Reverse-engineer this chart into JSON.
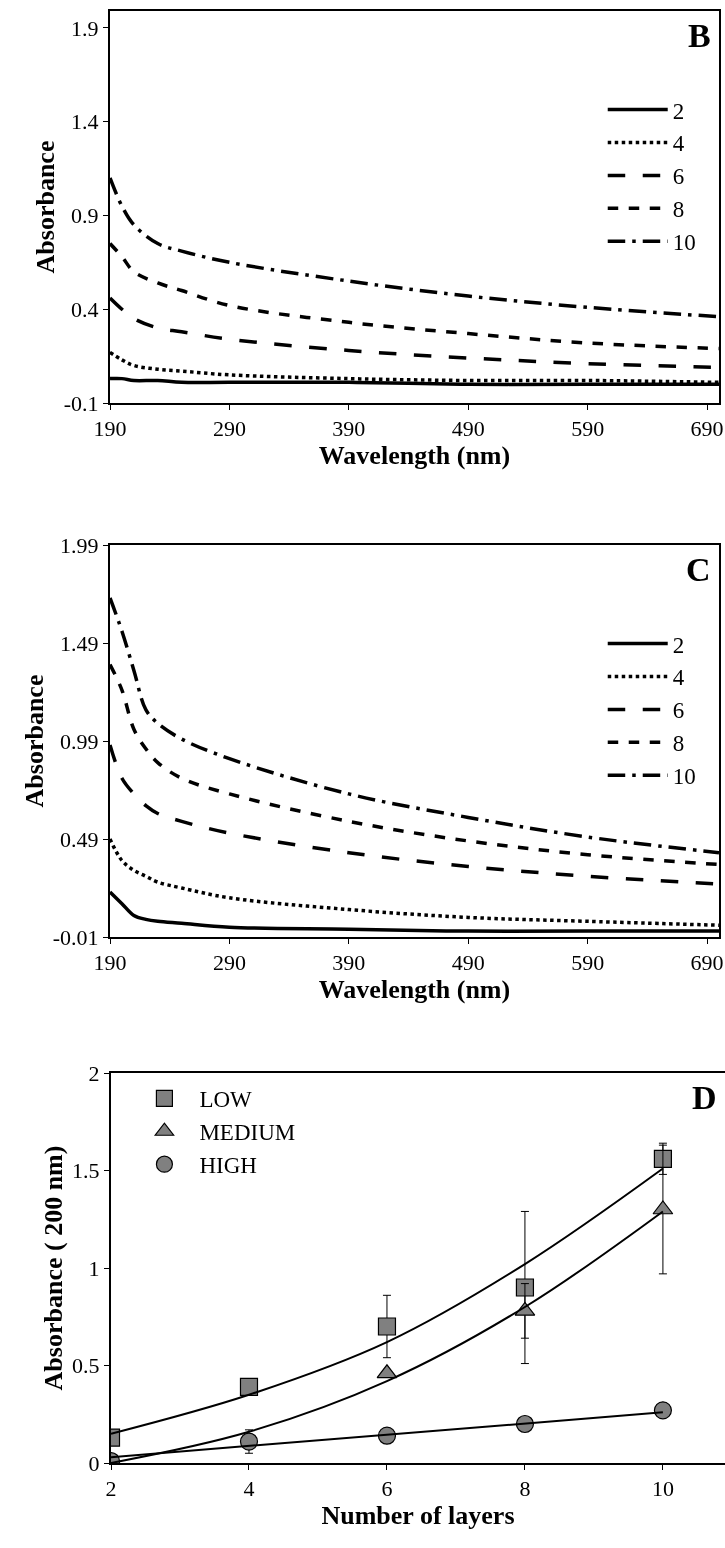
{
  "chart_data": [
    {
      "type": "line",
      "xlabel": "Wavelength (nm)",
      "ylabel": "Absorbance",
      "annotations": [
        "B"
      ],
      "xlim": [
        190,
        700
      ],
      "xticks": [
        190,
        290,
        390,
        490,
        590,
        690
      ],
      "ylim": [
        -0.1,
        1.99
      ],
      "yticks": [
        -0.1,
        0.4,
        0.9,
        1.4,
        1.9
      ],
      "legend": "right",
      "marker": "none",
      "x": [
        190,
        200,
        210,
        230,
        250,
        290,
        390,
        490,
        590,
        700
      ],
      "series": [
        {
          "name": "2",
          "color": "#000000",
          "line_style": "solid",
          "values": [
            0.03,
            0.03,
            0.02,
            0.02,
            0.01,
            0.01,
            0.01,
            0.0,
            0.0,
            0.0
          ]
        },
        {
          "name": "4",
          "color": "#000000",
          "line_style": "dotted",
          "values": [
            0.17,
            0.13,
            0.1,
            0.08,
            0.07,
            0.05,
            0.03,
            0.02,
            0.02,
            0.01
          ]
        },
        {
          "name": "6",
          "color": "#000000",
          "line_style": "longdash",
          "values": [
            0.46,
            0.4,
            0.35,
            0.3,
            0.28,
            0.24,
            0.18,
            0.14,
            0.11,
            0.09
          ]
        },
        {
          "name": "8",
          "color": "#000000",
          "line_style": "dashed",
          "values": [
            0.75,
            0.68,
            0.6,
            0.54,
            0.5,
            0.42,
            0.33,
            0.27,
            0.22,
            0.19
          ]
        },
        {
          "name": "10",
          "color": "#000000",
          "line_style": "dashdot",
          "values": [
            1.1,
            0.95,
            0.85,
            0.75,
            0.71,
            0.65,
            0.55,
            0.47,
            0.41,
            0.36
          ]
        }
      ]
    },
    {
      "type": "line",
      "xlabel": "Wavelength (nm)",
      "ylabel": "Absorbance",
      "annotations": [
        "C"
      ],
      "xlim": [
        190,
        700
      ],
      "xticks": [
        190,
        290,
        390,
        490,
        590,
        690
      ],
      "ylim": [
        -0.01,
        1.99
      ],
      "yticks": [
        -0.01,
        0.49,
        0.99,
        1.49,
        1.99
      ],
      "legend": "right",
      "marker": "none",
      "x": [
        190,
        200,
        210,
        220,
        230,
        250,
        290,
        390,
        490,
        590,
        700
      ],
      "series": [
        {
          "name": "2",
          "color": "#000000",
          "line_style": "solid",
          "values": [
            0.22,
            0.16,
            0.1,
            0.08,
            0.07,
            0.06,
            0.04,
            0.03,
            0.02,
            0.02,
            0.02
          ]
        },
        {
          "name": "4",
          "color": "#000000",
          "line_style": "dotted",
          "values": [
            0.49,
            0.38,
            0.33,
            0.3,
            0.27,
            0.24,
            0.19,
            0.13,
            0.09,
            0.07,
            0.05
          ]
        },
        {
          "name": "6",
          "color": "#000000",
          "line_style": "longdash",
          "values": [
            0.97,
            0.8,
            0.72,
            0.66,
            0.62,
            0.58,
            0.52,
            0.42,
            0.35,
            0.3,
            0.26
          ]
        },
        {
          "name": "8",
          "color": "#000000",
          "line_style": "dashed",
          "values": [
            1.38,
            1.25,
            1.05,
            0.95,
            0.88,
            0.8,
            0.72,
            0.58,
            0.48,
            0.41,
            0.36
          ]
        },
        {
          "name": "10",
          "color": "#000000",
          "line_style": "dashdot",
          "values": [
            1.72,
            1.55,
            1.35,
            1.15,
            1.08,
            1.0,
            0.9,
            0.72,
            0.6,
            0.5,
            0.42
          ]
        }
      ]
    },
    {
      "type": "scatter",
      "xlabel": "Number of layers",
      "ylabel": "Absorbance ( 200 nm)",
      "annotations": [
        "D"
      ],
      "xlim": [
        2,
        10.9
      ],
      "xticks": [
        2,
        4,
        6,
        8,
        10
      ],
      "ylim": [
        0,
        2
      ],
      "yticks": [
        0,
        0.5,
        1,
        1.5,
        2
      ],
      "legend": "top left",
      "x": [
        2,
        4,
        6,
        8,
        10
      ],
      "series": [
        {
          "name": "LOW",
          "color": "#808080",
          "marker": "square",
          "values": [
            0.13,
            0.39,
            0.7,
            0.9,
            1.56
          ],
          "errors": [
            null,
            null,
            0.16,
            0.39,
            0.08
          ]
        },
        {
          "name": "MEDIUM",
          "color": "#808080",
          "marker": "triangle",
          "values": [
            null,
            null,
            0.46,
            0.78,
            1.3
          ],
          "errors": [
            null,
            null,
            null,
            0.14,
            0.33
          ]
        },
        {
          "name": "HIGH",
          "color": "#808080",
          "marker": "circle",
          "values": [
            0.01,
            0.11,
            0.14,
            0.2,
            0.27
          ],
          "errors": [
            null,
            0.06,
            null,
            null,
            null
          ]
        },
        {
          "type": "line",
          "color": "#000000",
          "line_style": "solid",
          "x": [
            2,
            4,
            6,
            8,
            10
          ],
          "values": [
            0.15,
            0.35,
            0.62,
            1.02,
            1.51
          ]
        },
        {
          "type": "line",
          "color": "#000000",
          "line_style": "solid",
          "x": [
            2,
            4,
            6,
            8,
            10
          ],
          "values": [
            0.0,
            0.16,
            0.42,
            0.8,
            1.29
          ]
        },
        {
          "type": "line",
          "color": "#000000",
          "line_style": "solid",
          "x": [
            2,
            10
          ],
          "values": [
            0.03,
            0.26
          ]
        }
      ]
    }
  ]
}
